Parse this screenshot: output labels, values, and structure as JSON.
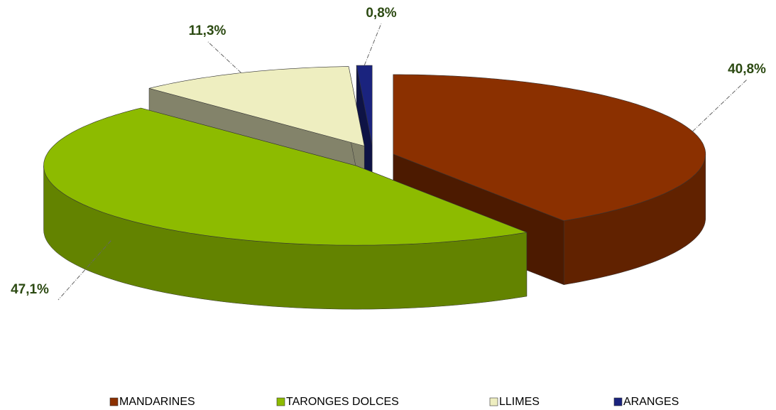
{
  "chart_data": {
    "type": "pie",
    "categories": [
      "MANDARINES",
      "TARONGES DOLCES",
      "LLIMES",
      "ARANGES"
    ],
    "values": [
      40.8,
      47.1,
      11.3,
      0.8
    ],
    "value_labels": [
      "40,8%",
      "47,1%",
      "11,3%",
      "0,8%"
    ],
    "colors": [
      "#8b3000",
      "#8dbb00",
      "#eeeec0",
      "#1a237e"
    ],
    "legend": "bottom"
  }
}
